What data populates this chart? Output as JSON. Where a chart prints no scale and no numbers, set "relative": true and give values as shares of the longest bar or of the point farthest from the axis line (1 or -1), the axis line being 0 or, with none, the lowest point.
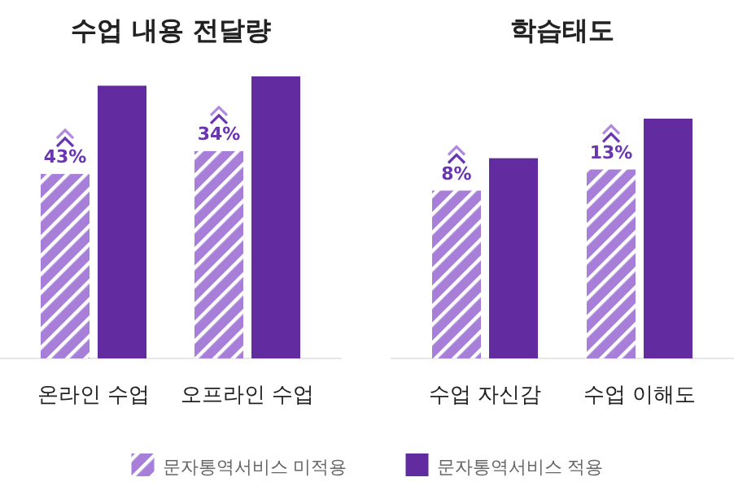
{
  "chart_data": [
    {
      "type": "bar",
      "relative": true,
      "title": "수업 내용 전달량",
      "categories": [
        "온라인 수업",
        "오프라인 수업"
      ],
      "legend": "bottom",
      "series": [
        {
          "name": "문자통역서비스 미적용",
          "color": "#a77fd8",
          "values": [
            0.654,
            0.735
          ]
        },
        {
          "name": "문자통역서비스 적용",
          "color": "#622ca0",
          "values": [
            0.967,
            1
          ]
        }
      ],
      "annotations": [
        {
          "text": "43%",
          "x": "온라인 수업",
          "y": 0.654
        },
        {
          "text": "34%",
          "x": "오프라인 수업",
          "y": 0.735
        }
      ]
    },
    {
      "type": "bar",
      "relative": true,
      "title": "학습태도",
      "categories": [
        "수업 자신감",
        "수업 이해도"
      ],
      "series": [
        {
          "name": "문자통역서비스 미적용",
          "color": "#a77fd8",
          "values": [
            0.7,
            0.788
          ]
        },
        {
          "name": "문자통역서비스 적용",
          "color": "#622ca0",
          "values": [
            0.835,
            1
          ]
        }
      ],
      "annotations": [
        {
          "text": "8%",
          "x": "수업 자신감",
          "y": 0.7
        },
        {
          "text": "13%",
          "x": "수업 이해도",
          "y": 0.788
        }
      ]
    }
  ]
}
